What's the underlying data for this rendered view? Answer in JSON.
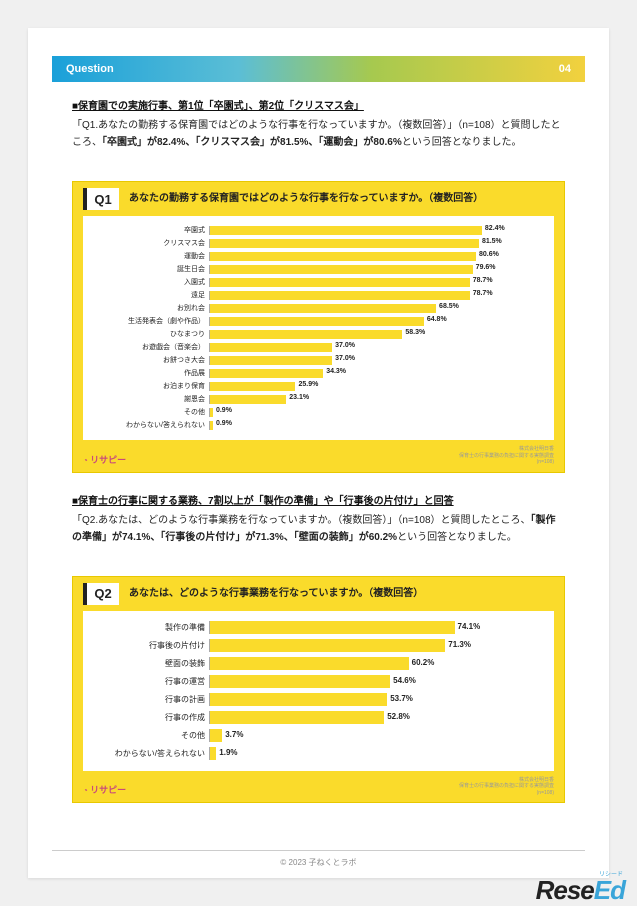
{
  "header": {
    "label": "Question",
    "page_num": "04"
  },
  "section1": {
    "heading": "■保育園での実施行事、第1位「卒園式」、第2位「クリスマス会」",
    "body_prefix": "「Q1.あなたの勤務する保育園ではどのような行事を行なっていますか。（複数回答）」（n=108）と質問したところ、",
    "bold1": "「卒園式」が82.4%、「クリスマス会」が81.5%、「運動会」が80.6%",
    "body_suffix": "という回答となりました。"
  },
  "chart1": {
    "badge": "Q1",
    "title": "あなたの勤務する保育園ではどのような行事を行なっていますか。（複数回答）",
    "max": 100,
    "bar_color": "#fadb2b",
    "rows": [
      {
        "label": "卒園式",
        "value": 82.4
      },
      {
        "label": "クリスマス会",
        "value": 81.5
      },
      {
        "label": "運動会",
        "value": 80.6
      },
      {
        "label": "誕生日会",
        "value": 79.6
      },
      {
        "label": "入園式",
        "value": 78.7
      },
      {
        "label": "遠足",
        "value": 78.7
      },
      {
        "label": "お別れ会",
        "value": 68.5
      },
      {
        "label": "生活発表会（劇や作品）",
        "value": 64.8
      },
      {
        "label": "ひなまつり",
        "value": 58.3
      },
      {
        "label": "お遊戯会（音楽会）",
        "value": 37.0
      },
      {
        "label": "お餅つき大会",
        "value": 37.0
      },
      {
        "label": "作品展",
        "value": 34.3
      },
      {
        "label": "お泊まり保育",
        "value": 25.9
      },
      {
        "label": "謝恩会",
        "value": 23.1
      },
      {
        "label": "その他",
        "value": 0.9
      },
      {
        "label": "わからない/答えられない",
        "value": 0.9
      }
    ],
    "brand": "リサピー",
    "footnote1": "株式会社明日香",
    "footnote2": "保育士の行事業務の負担に関する実態調査",
    "footnote3": "(n=108)"
  },
  "section2": {
    "heading": "■保育士の行事に関する業務、7割以上が「製作の準備」や「行事後の片付け」と回答",
    "body_prefix": "「Q2.あなたは、どのような行事業務を行なっていますか。（複数回答）」（n=108）と質問したところ、",
    "bold1": "「製作の準備」が74.1%、「行事後の片付け」が71.3%、「壁面の装飾」が60.2%",
    "body_suffix": "という回答となりました。"
  },
  "chart2": {
    "badge": "Q2",
    "title": "あなたは、どのような行事業務を行なっていますか。（複数回答）",
    "max": 100,
    "bar_color": "#fadb2b",
    "rows": [
      {
        "label": "製作の準備",
        "value": 74.1
      },
      {
        "label": "行事後の片付け",
        "value": 71.3
      },
      {
        "label": "壁面の装飾",
        "value": 60.2
      },
      {
        "label": "行事の運営",
        "value": 54.6
      },
      {
        "label": "行事の計画",
        "value": 53.7
      },
      {
        "label": "行事の作成",
        "value": 52.8
      },
      {
        "label": "その他",
        "value": 3.7
      },
      {
        "label": "わからない/答えられない",
        "value": 1.9
      }
    ],
    "brand": "リサピー",
    "footnote1": "株式会社明日香",
    "footnote2": "保育士の行事業務の負担に関する実態調査",
    "footnote3": "(n=108)"
  },
  "copyright": "© 2023 子ねくとラボ",
  "watermark": {
    "rese": "Rese",
    "ed": "Ed",
    "ruby": "リシード"
  }
}
